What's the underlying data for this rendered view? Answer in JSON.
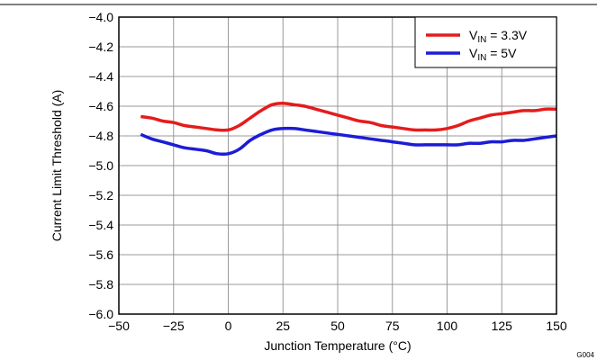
{
  "chart_data": {
    "type": "line",
    "xlabel": "Junction Temperature (°C)",
    "ylabel": "Current Limit Threshold (A)",
    "xlim": [
      -50,
      150
    ],
    "ylim": [
      -6.0,
      -4.0
    ],
    "x_ticks": [
      -50,
      -25,
      0,
      25,
      50,
      75,
      100,
      125,
      150
    ],
    "y_ticks": [
      -4.0,
      -4.2,
      -4.4,
      -4.6,
      -4.8,
      -5.0,
      -5.2,
      -5.4,
      -5.6,
      -5.8,
      -6.0
    ],
    "x_tick_labels": [
      "−50",
      "−25",
      "0",
      "25",
      "50",
      "75",
      "100",
      "125",
      "150"
    ],
    "y_tick_labels": [
      "−4.0",
      "−4.2",
      "−4.4",
      "−4.6",
      "−4.8",
      "−5.0",
      "−5.2",
      "−5.4",
      "−5.6",
      "−5.8",
      "−6.0"
    ],
    "grid": true,
    "legend_position": "top-right",
    "series": [
      {
        "name": "V_IN = 3.3V",
        "name_main": "V",
        "name_sub": "IN",
        "name_rest": " = 3.3V",
        "color": "#e41c1c",
        "x": [
          -40,
          -35,
          -30,
          -25,
          -20,
          -15,
          -10,
          -5,
          0,
          5,
          10,
          15,
          20,
          25,
          30,
          35,
          40,
          45,
          50,
          55,
          60,
          65,
          70,
          75,
          80,
          85,
          90,
          95,
          100,
          105,
          110,
          115,
          120,
          125,
          130,
          135,
          140,
          145,
          150
        ],
        "y": [
          -4.67,
          -4.68,
          -4.7,
          -4.71,
          -4.73,
          -4.74,
          -4.75,
          -4.76,
          -4.76,
          -4.73,
          -4.68,
          -4.63,
          -4.59,
          -4.58,
          -4.59,
          -4.6,
          -4.62,
          -4.64,
          -4.66,
          -4.68,
          -4.7,
          -4.71,
          -4.73,
          -4.74,
          -4.75,
          -4.76,
          -4.76,
          -4.76,
          -4.75,
          -4.73,
          -4.7,
          -4.68,
          -4.66,
          -4.65,
          -4.64,
          -4.63,
          -4.63,
          -4.62,
          -4.62
        ]
      },
      {
        "name": "V_IN = 5V",
        "name_main": "V",
        "name_sub": "IN",
        "name_rest": " = 5V",
        "color": "#1c1cd6",
        "x": [
          -40,
          -35,
          -30,
          -25,
          -20,
          -15,
          -10,
          -5,
          0,
          5,
          10,
          15,
          20,
          25,
          30,
          35,
          40,
          45,
          50,
          55,
          60,
          65,
          70,
          75,
          80,
          85,
          90,
          95,
          100,
          105,
          110,
          115,
          120,
          125,
          130,
          135,
          140,
          145,
          150
        ],
        "y": [
          -4.79,
          -4.82,
          -4.84,
          -4.86,
          -4.88,
          -4.89,
          -4.9,
          -4.92,
          -4.92,
          -4.89,
          -4.83,
          -4.79,
          -4.76,
          -4.75,
          -4.75,
          -4.76,
          -4.77,
          -4.78,
          -4.79,
          -4.8,
          -4.81,
          -4.82,
          -4.83,
          -4.84,
          -4.85,
          -4.86,
          -4.86,
          -4.86,
          -4.86,
          -4.86,
          -4.85,
          -4.85,
          -4.84,
          -4.84,
          -4.83,
          -4.83,
          -4.82,
          -4.81,
          -4.8
        ]
      }
    ]
  },
  "figure_code": "G004"
}
